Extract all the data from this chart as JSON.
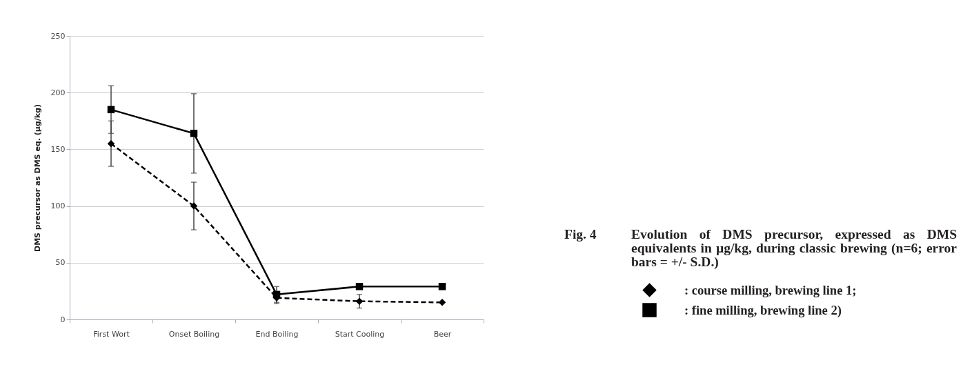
{
  "chart_data": {
    "type": "line",
    "title": "Fig. 4",
    "subtitle": "Evolution of DMS precursor, expressed as DMS equivalents in µg/kg, during classic brewing (n=6; error bars = +/- S.D.)",
    "ylabel": "DMS precursor as DMS eq. (µg/kg)",
    "categories": [
      "First Wort",
      "Onset Boiling",
      "End Boiling",
      "Start Cooling",
      "Beer"
    ],
    "ylim": [
      0,
      250
    ],
    "yticks": [
      0,
      50,
      100,
      150,
      200,
      250
    ],
    "grid": "y",
    "legend": "right",
    "series": [
      {
        "name": ": course milling, brewing line 1;",
        "color": "#000000",
        "marker": "diamond",
        "line_style": "dashed",
        "values": [
          155,
          100,
          19,
          16,
          15
        ],
        "errors": [
          20,
          21,
          5,
          6,
          null
        ]
      },
      {
        "name": ": fine milling, brewing line 2)",
        "color": "#000000",
        "marker": "square",
        "line_style": "solid",
        "values": [
          185,
          164,
          22,
          29,
          29
        ],
        "errors": [
          21,
          35,
          7,
          null,
          null
        ]
      }
    ]
  }
}
